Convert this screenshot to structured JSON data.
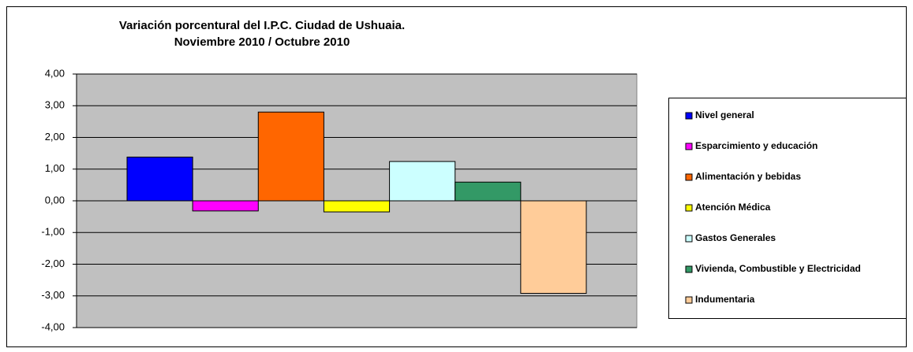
{
  "chart_data": {
    "type": "bar",
    "title": [
      "Variación porcentural del I.P.C. Ciudad de Ushuaia.",
      "Noviembre 2010 / Octubre 2010"
    ],
    "categories": [
      null
    ],
    "series": [
      {
        "name": "Nivel general",
        "color": "#0000ff",
        "values": [
          1.38
        ]
      },
      {
        "name": "Esparcimiento y educación",
        "color": "#ff00ff",
        "values": [
          -0.32
        ]
      },
      {
        "name": "Alimentación y bebidas",
        "color": "#ff6600",
        "values": [
          2.8
        ]
      },
      {
        "name": "Atención Médica",
        "color": "#ffff00",
        "values": [
          -0.35
        ]
      },
      {
        "name": "Gastos Generales",
        "color": "#ccffff",
        "values": [
          1.24
        ]
      },
      {
        "name": "Vivienda, Combustible y Electricidad",
        "color": "#339966",
        "values": [
          0.59
        ]
      },
      {
        "name": "Indumentaria",
        "color": "#ffcc99",
        "values": [
          -2.92
        ]
      }
    ],
    "ylim": [
      -4,
      4
    ],
    "yticks": [
      {
        "value": 4,
        "label": "4,00"
      },
      {
        "value": 3,
        "label": "3,00"
      },
      {
        "value": 2,
        "label": "2,00"
      },
      {
        "value": 1,
        "label": "1,00"
      },
      {
        "value": 0,
        "label": "0,00"
      },
      {
        "value": -1,
        "label": "-1,00"
      },
      {
        "value": -2,
        "label": "-2,00"
      },
      {
        "value": -3,
        "label": "-3,00"
      },
      {
        "value": -4,
        "label": "-4,00"
      }
    ],
    "grid": true,
    "legend": "right"
  }
}
